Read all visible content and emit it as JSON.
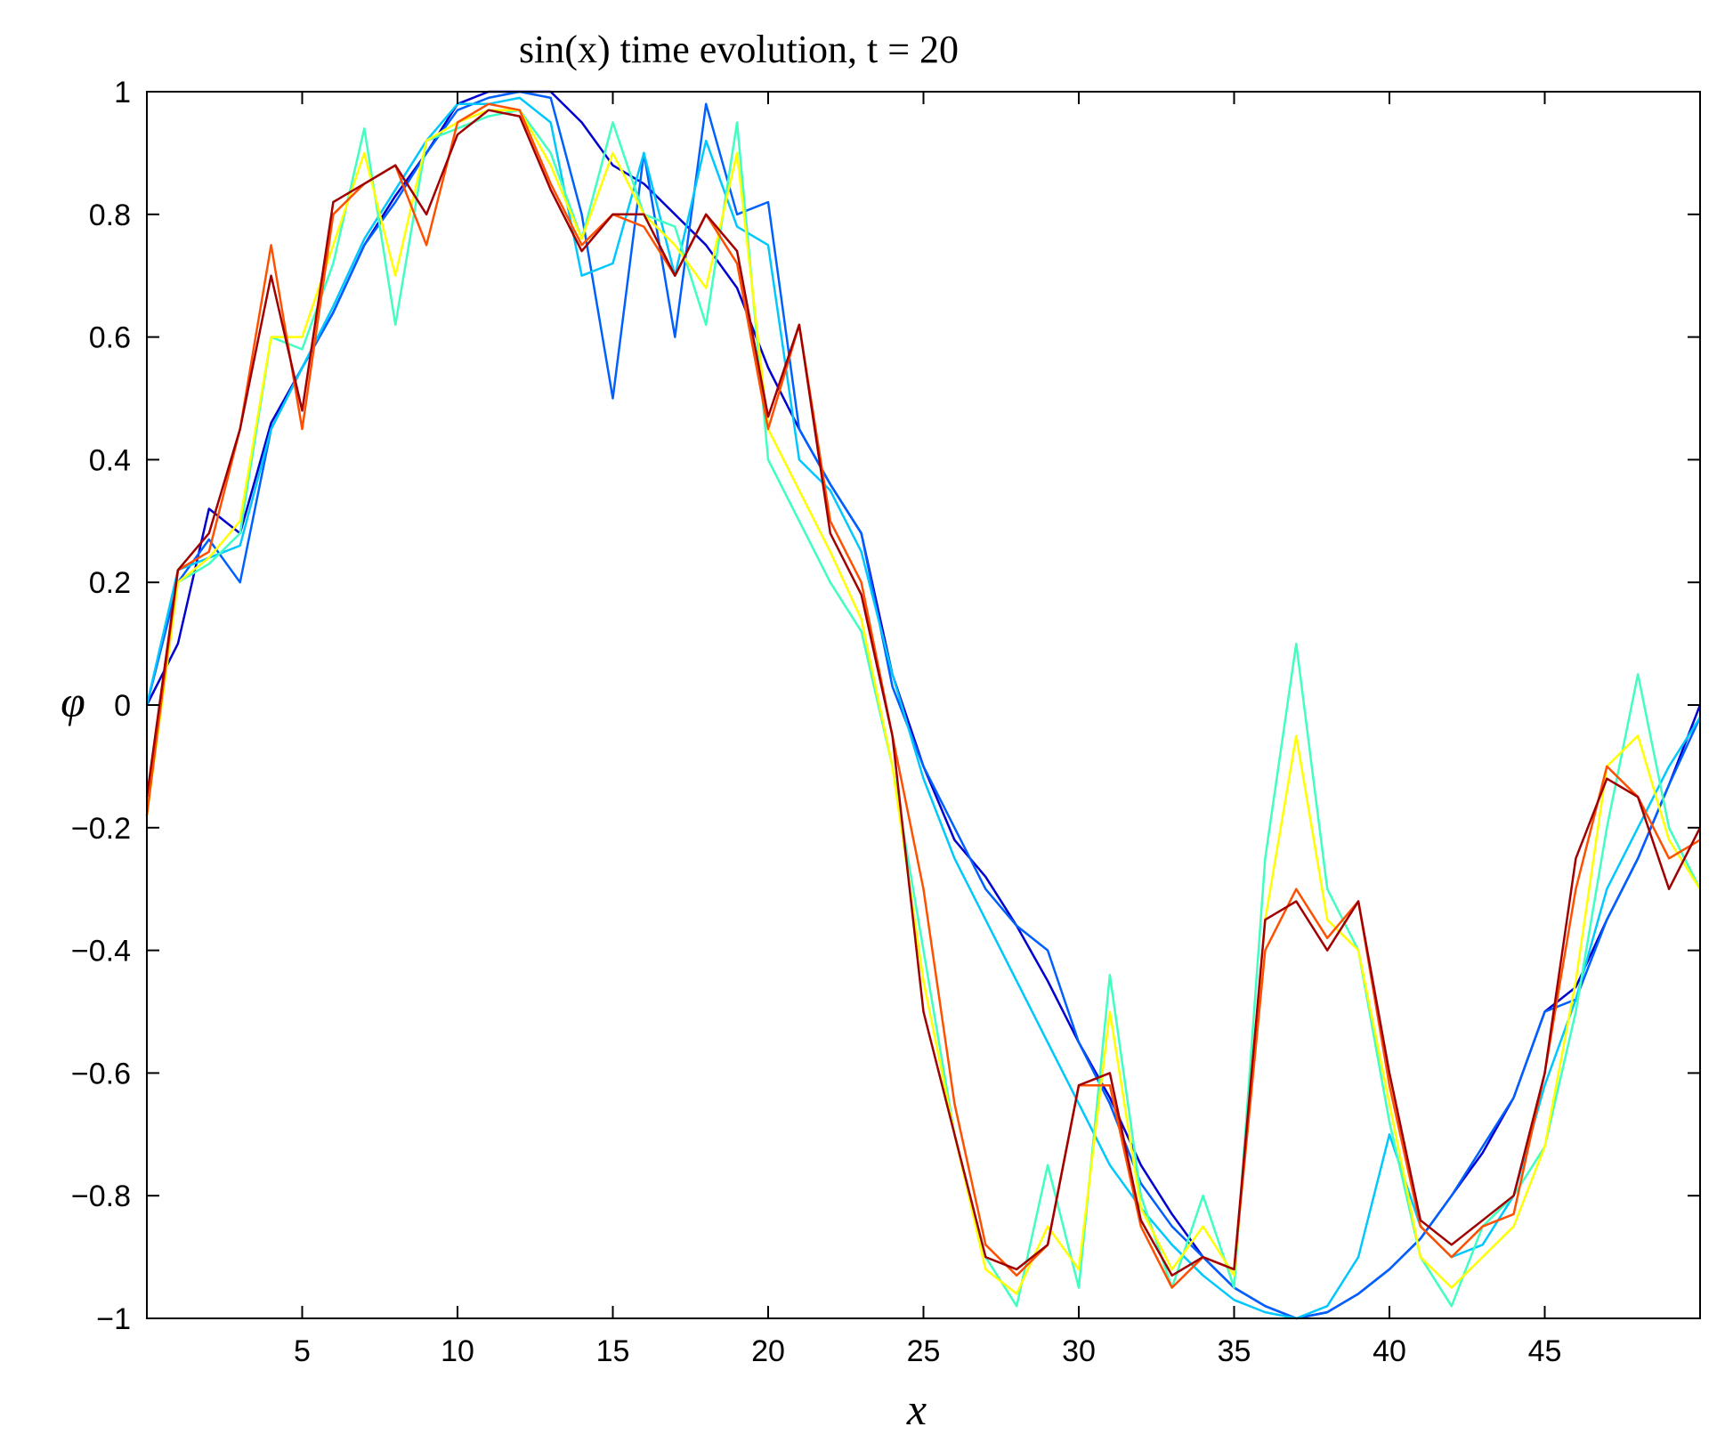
{
  "chart_data": {
    "type": "line",
    "title": "sin(x) time evolution, t = 20",
    "xlabel": "x",
    "ylabel": "φ",
    "xlim": [
      0,
      50
    ],
    "ylim": [
      -1,
      1
    ],
    "xticks": [
      5,
      10,
      15,
      20,
      25,
      30,
      35,
      40,
      45
    ],
    "yticks": [
      -1,
      -0.8,
      -0.6,
      -0.4,
      -0.2,
      0,
      0.2,
      0.4,
      0.6,
      0.8,
      1
    ],
    "ytick_labels": [
      "−1",
      "−0.8",
      "−0.6",
      "−0.4",
      "−0.2",
      "0",
      "0.2",
      "0.4",
      "0.6",
      "0.8",
      "1"
    ],
    "xtick_labels": [
      "5",
      "10",
      "15",
      "20",
      "25",
      "30",
      "35",
      "40",
      "45"
    ],
    "grid": false,
    "colormap": "jet",
    "series": [
      {
        "color": "#0000d0",
        "x": [
          0,
          1,
          2,
          3,
          4,
          5,
          6,
          7,
          8,
          9,
          10,
          11,
          12,
          13,
          14,
          15,
          16,
          17,
          18,
          19,
          20,
          21,
          22,
          23,
          24,
          25,
          26,
          27,
          28,
          29,
          30,
          31,
          32,
          33,
          34,
          35,
          36,
          37,
          38,
          39,
          40,
          41,
          42,
          43,
          44,
          45,
          46,
          47,
          48,
          49,
          50
        ],
        "y": [
          0.0,
          0.1,
          0.32,
          0.28,
          0.46,
          0.55,
          0.64,
          0.75,
          0.83,
          0.9,
          0.98,
          1.0,
          1.0,
          1.0,
          0.95,
          0.88,
          0.85,
          0.8,
          0.75,
          0.68,
          0.55,
          0.45,
          0.36,
          0.28,
          0.05,
          -0.1,
          -0.22,
          -0.28,
          -0.36,
          -0.45,
          -0.55,
          -0.64,
          -0.75,
          -0.83,
          -0.9,
          -0.95,
          -0.98,
          -1.0,
          -0.99,
          -0.96,
          -0.92,
          -0.87,
          -0.8,
          -0.73,
          -0.64,
          -0.5,
          -0.46,
          -0.35,
          -0.25,
          -0.13,
          0.0
        ]
      },
      {
        "color": "#0060ff",
        "x": [
          0,
          1,
          2,
          3,
          4,
          5,
          6,
          7,
          8,
          9,
          10,
          11,
          12,
          13,
          14,
          15,
          16,
          17,
          18,
          19,
          20,
          21,
          22,
          23,
          24,
          25,
          26,
          27,
          28,
          29,
          30,
          31,
          32,
          33,
          34,
          35,
          36,
          37,
          38,
          39,
          40,
          41,
          42,
          43,
          44,
          45,
          46,
          47,
          48,
          49,
          50
        ],
        "y": [
          0.0,
          0.2,
          0.27,
          0.2,
          0.45,
          0.55,
          0.64,
          0.75,
          0.82,
          0.9,
          0.97,
          0.99,
          1.0,
          0.99,
          0.8,
          0.5,
          0.9,
          0.6,
          0.98,
          0.8,
          0.82,
          0.45,
          0.36,
          0.28,
          0.03,
          -0.1,
          -0.2,
          -0.3,
          -0.36,
          -0.4,
          -0.55,
          -0.65,
          -0.78,
          -0.85,
          -0.9,
          -0.95,
          -0.98,
          -1.0,
          -0.99,
          -0.96,
          -0.92,
          -0.87,
          -0.8,
          -0.72,
          -0.64,
          -0.5,
          -0.48,
          -0.35,
          -0.25,
          -0.13,
          -0.02
        ]
      },
      {
        "color": "#00c8ff",
        "x": [
          0,
          1,
          2,
          3,
          4,
          5,
          6,
          7,
          8,
          9,
          10,
          11,
          12,
          13,
          14,
          15,
          16,
          17,
          18,
          19,
          20,
          21,
          22,
          23,
          24,
          25,
          26,
          27,
          28,
          29,
          30,
          31,
          32,
          33,
          34,
          35,
          36,
          37,
          38,
          39,
          40,
          41,
          42,
          43,
          44,
          45,
          46,
          47,
          48,
          49,
          50
        ],
        "y": [
          0.0,
          0.22,
          0.24,
          0.26,
          0.45,
          0.55,
          0.65,
          0.76,
          0.84,
          0.92,
          0.98,
          0.98,
          0.99,
          0.95,
          0.7,
          0.72,
          0.9,
          0.7,
          0.92,
          0.78,
          0.75,
          0.4,
          0.35,
          0.25,
          0.05,
          -0.12,
          -0.25,
          -0.35,
          -0.45,
          -0.55,
          -0.65,
          -0.75,
          -0.82,
          -0.88,
          -0.93,
          -0.97,
          -0.99,
          -1.0,
          -0.98,
          -0.9,
          -0.7,
          -0.85,
          -0.9,
          -0.88,
          -0.8,
          -0.62,
          -0.48,
          -0.3,
          -0.2,
          -0.1,
          -0.02
        ]
      },
      {
        "color": "#40ffc0",
        "x": [
          0,
          1,
          2,
          3,
          4,
          5,
          6,
          7,
          8,
          9,
          10,
          11,
          12,
          13,
          14,
          15,
          16,
          17,
          18,
          19,
          20,
          21,
          22,
          23,
          24,
          25,
          26,
          27,
          28,
          29,
          30,
          31,
          32,
          33,
          34,
          35,
          36,
          37,
          38,
          39,
          40,
          41,
          42,
          43,
          44,
          45,
          46,
          47,
          48,
          49,
          50
        ],
        "y": [
          -0.18,
          0.2,
          0.23,
          0.28,
          0.6,
          0.58,
          0.72,
          0.94,
          0.62,
          0.92,
          0.94,
          0.96,
          0.97,
          0.9,
          0.76,
          0.95,
          0.8,
          0.78,
          0.62,
          0.95,
          0.4,
          0.3,
          0.2,
          0.12,
          -0.1,
          -0.4,
          -0.7,
          -0.9,
          -0.98,
          -0.75,
          -0.95,
          -0.44,
          -0.8,
          -0.95,
          -0.8,
          -0.95,
          -0.25,
          0.1,
          -0.3,
          -0.4,
          -0.68,
          -0.9,
          -0.98,
          -0.85,
          -0.8,
          -0.72,
          -0.5,
          -0.2,
          0.05,
          -0.2,
          -0.3
        ]
      },
      {
        "color": "#ffff00",
        "x": [
          0,
          1,
          2,
          3,
          4,
          5,
          6,
          7,
          8,
          9,
          10,
          11,
          12,
          13,
          14,
          15,
          16,
          17,
          18,
          19,
          20,
          21,
          22,
          23,
          24,
          25,
          26,
          27,
          28,
          29,
          30,
          31,
          32,
          33,
          34,
          35,
          36,
          37,
          38,
          39,
          40,
          41,
          42,
          43,
          44,
          45,
          46,
          47,
          48,
          49,
          50
        ],
        "y": [
          -0.18,
          0.2,
          0.24,
          0.3,
          0.6,
          0.6,
          0.75,
          0.9,
          0.7,
          0.92,
          0.95,
          0.97,
          0.97,
          0.88,
          0.76,
          0.9,
          0.8,
          0.75,
          0.68,
          0.9,
          0.45,
          0.35,
          0.25,
          0.14,
          -0.1,
          -0.45,
          -0.7,
          -0.92,
          -0.96,
          -0.85,
          -0.92,
          -0.5,
          -0.82,
          -0.92,
          -0.85,
          -0.93,
          -0.35,
          -0.05,
          -0.35,
          -0.4,
          -0.65,
          -0.9,
          -0.95,
          -0.9,
          -0.85,
          -0.72,
          -0.45,
          -0.1,
          -0.05,
          -0.22,
          -0.3
        ]
      },
      {
        "color": "#ff5000",
        "x": [
          0,
          1,
          2,
          3,
          4,
          5,
          6,
          7,
          8,
          9,
          10,
          11,
          12,
          13,
          14,
          15,
          16,
          17,
          18,
          19,
          20,
          21,
          22,
          23,
          24,
          25,
          26,
          27,
          28,
          29,
          30,
          31,
          32,
          33,
          34,
          35,
          36,
          37,
          38,
          39,
          40,
          41,
          42,
          43,
          44,
          45,
          46,
          47,
          48,
          49,
          50
        ],
        "y": [
          -0.18,
          0.22,
          0.25,
          0.45,
          0.75,
          0.45,
          0.8,
          0.85,
          0.88,
          0.75,
          0.95,
          0.98,
          0.97,
          0.85,
          0.75,
          0.8,
          0.78,
          0.7,
          0.8,
          0.72,
          0.45,
          0.62,
          0.3,
          0.2,
          -0.05,
          -0.3,
          -0.65,
          -0.88,
          -0.93,
          -0.88,
          -0.62,
          -0.62,
          -0.85,
          -0.95,
          -0.9,
          -0.92,
          -0.4,
          -0.3,
          -0.38,
          -0.32,
          -0.62,
          -0.85,
          -0.9,
          -0.85,
          -0.83,
          -0.6,
          -0.3,
          -0.1,
          -0.15,
          -0.25,
          -0.22
        ]
      },
      {
        "color": "#a00000",
        "x": [
          0,
          1,
          2,
          3,
          4,
          5,
          6,
          7,
          8,
          9,
          10,
          11,
          12,
          13,
          14,
          15,
          16,
          17,
          18,
          19,
          20,
          21,
          22,
          23,
          24,
          25,
          26,
          27,
          28,
          29,
          30,
          31,
          32,
          33,
          34,
          35,
          36,
          37,
          38,
          39,
          40,
          41,
          42,
          43,
          44,
          45,
          46,
          47,
          48,
          49,
          50
        ],
        "y": [
          -0.15,
          0.22,
          0.28,
          0.45,
          0.7,
          0.48,
          0.82,
          0.85,
          0.88,
          0.8,
          0.93,
          0.97,
          0.96,
          0.84,
          0.74,
          0.8,
          0.8,
          0.7,
          0.8,
          0.74,
          0.47,
          0.62,
          0.28,
          0.18,
          -0.05,
          -0.5,
          -0.7,
          -0.9,
          -0.92,
          -0.88,
          -0.62,
          -0.6,
          -0.84,
          -0.93,
          -0.9,
          -0.92,
          -0.35,
          -0.32,
          -0.4,
          -0.32,
          -0.6,
          -0.84,
          -0.88,
          -0.84,
          -0.8,
          -0.6,
          -0.25,
          -0.12,
          -0.15,
          -0.3,
          -0.2
        ]
      }
    ]
  }
}
